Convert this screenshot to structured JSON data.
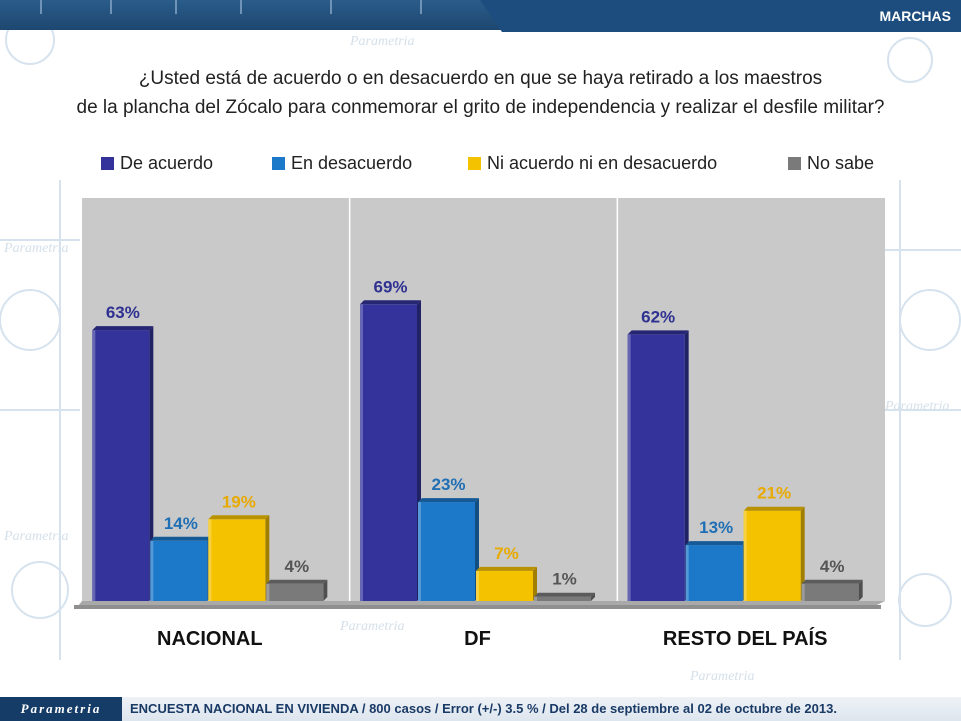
{
  "header": {
    "tag": "MARCHAS"
  },
  "question": {
    "line1": "¿Usted está de acuerdo o en desacuerdo en que se haya retirado a los maestros",
    "line2": "de la plancha del Zócalo para conmemorar el grito de independencia y realizar el desfile militar?"
  },
  "background_watermark": "Parametria",
  "footer": {
    "logo": "Parametria",
    "text": "ENCUESTA NACIONAL EN VIVIENDA / 800 casos / Error (+/-) 3.5 % / Del 28 de septiembre al 02 de octubre de 2013."
  },
  "chart_data": {
    "type": "bar",
    "categories": [
      "NACIONAL",
      "DF",
      "RESTO DEL PAÍS"
    ],
    "series": [
      {
        "name": "De acuerdo",
        "color": "#33339b",
        "label_color": "#2e3191",
        "values": [
          63,
          69,
          62
        ],
        "labels": [
          "63%",
          "69%",
          "62%"
        ]
      },
      {
        "name": "En desacuerdo",
        "color": "#1c78c8",
        "label_color": "#1f6fb5",
        "values": [
          14,
          23,
          13
        ],
        "labels": [
          "14%",
          "23%",
          "13%"
        ]
      },
      {
        "name": "Ni acuerdo ni en desacuerdo",
        "color": "#f5c200",
        "label_color": "#e8a900",
        "values": [
          19,
          7,
          21
        ],
        "labels": [
          "19%",
          "7%",
          "21%"
        ]
      },
      {
        "name": "No sabe",
        "color": "#7a7a7a",
        "label_color": "#555555",
        "values": [
          4,
          1,
          4
        ],
        "labels": [
          "4%",
          "1%",
          "4%"
        ]
      }
    ],
    "ylim": [
      0,
      100
    ],
    "legend_position": "top",
    "grid": false
  }
}
